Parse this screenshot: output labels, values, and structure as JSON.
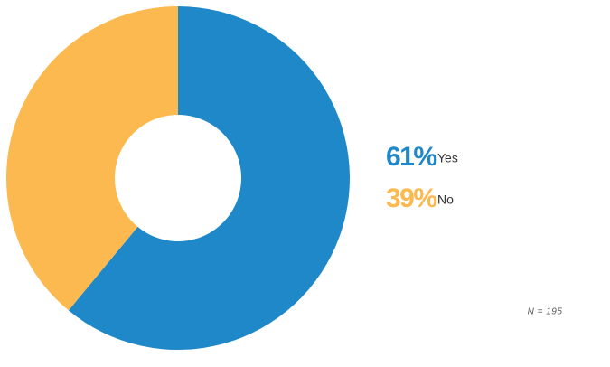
{
  "chart_data": {
    "type": "donut",
    "categories": [
      "Yes",
      "No"
    ],
    "series": [
      {
        "values": [
          61,
          39
        ],
        "value_labels": [
          "61%",
          "39%"
        ],
        "colors": [
          "#1f88c8",
          "#fbb94f"
        ]
      }
    ],
    "note": "N = 195"
  }
}
